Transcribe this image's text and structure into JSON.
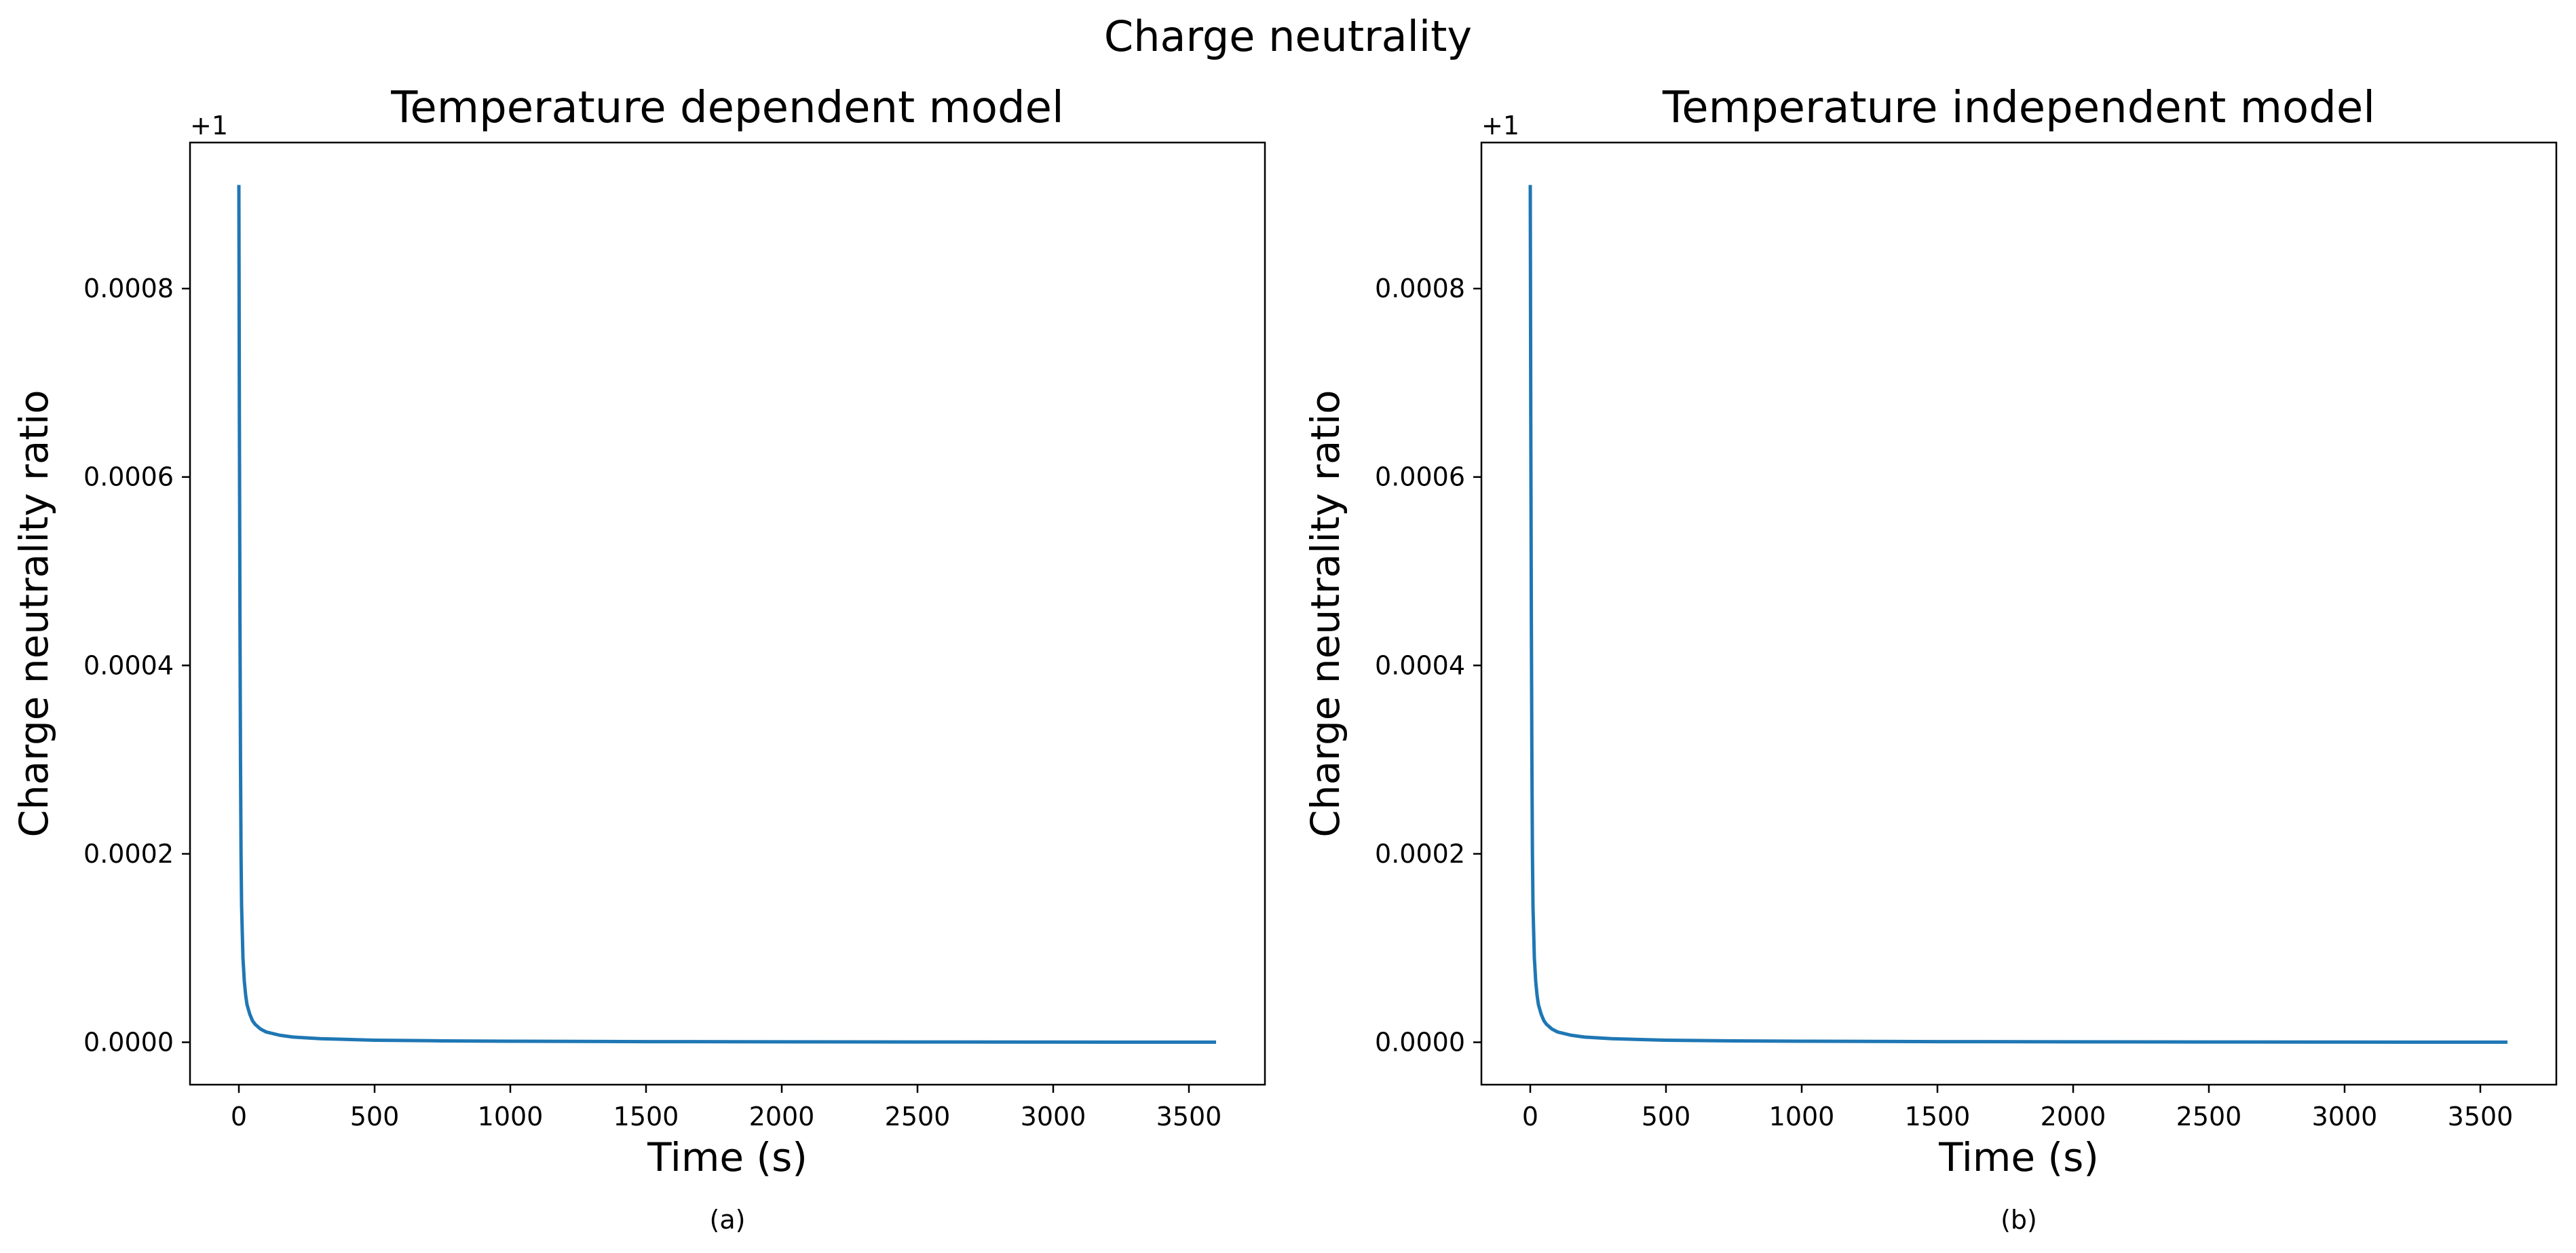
{
  "figure": {
    "suptitle": "Charge neutrality"
  },
  "chart_data": [
    {
      "type": "line",
      "title": "Temperature dependent model",
      "xlabel": "Time (s)",
      "ylabel": "Charge neutrality ratio",
      "caption": "(a)",
      "offset_text": "+1",
      "y_offset": 1,
      "xlim": [
        -180,
        3780
      ],
      "ylim": [
        -4.5e-05,
        0.000955
      ],
      "xticks": [
        0,
        500,
        1000,
        1500,
        2000,
        2500,
        3000,
        3500
      ],
      "xtick_labels": [
        "0",
        "500",
        "1000",
        "1500",
        "2000",
        "2500",
        "3000",
        "3500"
      ],
      "yticks": [
        0.0,
        0.0002,
        0.0004,
        0.0006,
        0.0008
      ],
      "ytick_labels": [
        "0.0000",
        "0.0002",
        "0.0004",
        "0.0006",
        "0.0008"
      ],
      "grid": false,
      "series": [
        {
          "color": "#1f77b4",
          "x": [
            0,
            2,
            4,
            6,
            8,
            10,
            15,
            20,
            25,
            30,
            40,
            50,
            60,
            80,
            100,
            150,
            200,
            300,
            500,
            750,
            1000,
            1500,
            2000,
            2500,
            3000,
            3600
          ],
          "y": [
            0.00091,
            0.00065,
            0.00045,
            0.0003,
            0.0002,
            0.000145,
            9e-05,
            6.5e-05,
            5e-05,
            4e-05,
            3e-05,
            2.3e-05,
            1.9e-05,
            1.4e-05,
            1.1e-05,
            7.5e-06,
            5.5e-06,
            3.8e-06,
            2.2e-06,
            1.5e-06,
            1.1e-06,
            7e-07,
            5e-07,
            3e-07,
            2e-07,
            1e-07
          ]
        }
      ]
    },
    {
      "type": "line",
      "title": "Temperature independent model",
      "xlabel": "Time (s)",
      "ylabel": "Charge neutrality ratio",
      "caption": "(b)",
      "offset_text": "+1",
      "y_offset": 1,
      "xlim": [
        -180,
        3780
      ],
      "ylim": [
        -4.5e-05,
        0.000955
      ],
      "xticks": [
        0,
        500,
        1000,
        1500,
        2000,
        2500,
        3000,
        3500
      ],
      "xtick_labels": [
        "0",
        "500",
        "1000",
        "1500",
        "2000",
        "2500",
        "3000",
        "3500"
      ],
      "yticks": [
        0.0,
        0.0002,
        0.0004,
        0.0006,
        0.0008
      ],
      "ytick_labels": [
        "0.0000",
        "0.0002",
        "0.0004",
        "0.0006",
        "0.0008"
      ],
      "grid": false,
      "series": [
        {
          "color": "#1f77b4",
          "x": [
            0,
            2,
            4,
            6,
            8,
            10,
            15,
            20,
            25,
            30,
            40,
            50,
            60,
            80,
            100,
            150,
            200,
            300,
            500,
            750,
            1000,
            1500,
            2000,
            2500,
            3000,
            3600
          ],
          "y": [
            0.00091,
            0.00065,
            0.00045,
            0.0003,
            0.0002,
            0.000145,
            9e-05,
            6.5e-05,
            5e-05,
            4e-05,
            3e-05,
            2.3e-05,
            1.9e-05,
            1.4e-05,
            1.1e-05,
            7.5e-06,
            5.5e-06,
            3.8e-06,
            2.2e-06,
            1.5e-06,
            1.1e-06,
            7e-07,
            5e-07,
            3e-07,
            2e-07,
            1e-07
          ]
        }
      ]
    }
  ]
}
